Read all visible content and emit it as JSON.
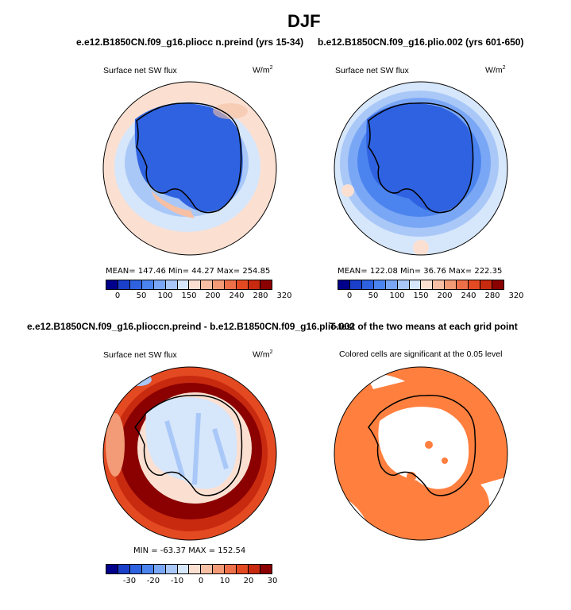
{
  "page_title": "DJF",
  "panels": {
    "p1": {
      "title": "e.e12.B1850CN.f09_g16.pliocc n.preind (yrs 15-34)",
      "left_label": "Surface net SW flux",
      "units": "W/m",
      "units_sup": "2",
      "stats": "MEAN= 147.46   Min=   44.27   Max= 254.85"
    },
    "p2": {
      "title": "b.e12.B1850CN.f09_g16.plio.002 (yrs 601-650)",
      "left_label": "Surface net SW flux",
      "units": "W/m",
      "units_sup": "2",
      "stats": "MEAN= 122.08   Min=   36.76   Max= 222.35"
    },
    "p3": {
      "title": "e.e12.B1850CN.f09_g16.plioccn.preind - b.e12.B1850CN.f09_g16.plio.002",
      "left_label": "Surface net SW flux",
      "units": "W/m",
      "units_sup": "2",
      "stats": "MIN = -63.37  MAX = 152.54"
    },
    "p4": {
      "title": "T-test of the two means at each grid point",
      "left_label": "Colored cells are significant at the 0.05 level"
    }
  },
  "colors": {
    "abs_scale": [
      "#00008b",
      "#1a3fc9",
      "#2f62e0",
      "#4b84ee",
      "#7aa7f5",
      "#a9c8f8",
      "#d6e6fb",
      "#fbe0d2",
      "#f7bfa4",
      "#f39a76",
      "#ee7048",
      "#e44a22",
      "#c82a0f",
      "#8b0000"
    ],
    "diff_scale": [
      "#00008b",
      "#1a3fc9",
      "#2f62e0",
      "#4b84ee",
      "#7aa7f5",
      "#a9c8f8",
      "#d6e6fb",
      "#fbe0d2",
      "#f7bfa4",
      "#f39a76",
      "#ee7048",
      "#e44a22",
      "#c82a0f",
      "#8b0000"
    ],
    "significant": "#ff7f3f"
  },
  "chart_data": [
    {
      "type": "heatmap",
      "title": "e.e12.B1850CN.f09_g16.plioccn.preind (yrs 15-34)",
      "variable": "Surface net SW flux",
      "units": "W/m2",
      "stats": {
        "mean": 147.46,
        "min": 44.27,
        "max": 254.85
      },
      "colorbar_ticks": [
        "0",
        "50",
        "100",
        "150",
        "200",
        "240",
        "280",
        "320"
      ]
    },
    {
      "type": "heatmap",
      "title": "b.e12.B1850CN.f09_g16.plio.002 (yrs 601-650)",
      "variable": "Surface net SW flux",
      "units": "W/m2",
      "stats": {
        "mean": 122.08,
        "min": 36.76,
        "max": 222.35
      },
      "colorbar_ticks": [
        "0",
        "50",
        "100",
        "150",
        "200",
        "240",
        "280",
        "320"
      ]
    },
    {
      "type": "heatmap",
      "title": "e.e12.B1850CN.f09_g16.plioccn.preind - b.e12.B1850CN.f09_g16.plio.002",
      "variable": "Surface net SW flux",
      "units": "W/m2",
      "stats": {
        "min": -63.37,
        "max": 152.54
      },
      "colorbar_ticks": [
        "-30",
        "-20",
        "-10",
        "0",
        "10",
        "20",
        "30"
      ]
    },
    {
      "type": "heatmap",
      "title": "T-test of the two means at each grid point",
      "note": "Colored cells are significant at the 0.05 level"
    }
  ]
}
